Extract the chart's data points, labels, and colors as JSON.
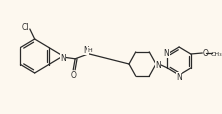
{
  "background_color": "#fdf8ef",
  "line_color": "#2a2a2a",
  "lw": 0.9,
  "figsize": [
    2.22,
    1.15
  ],
  "dpi": 100,
  "xlim": [
    0,
    222
  ],
  "ylim": [
    0,
    115
  ]
}
